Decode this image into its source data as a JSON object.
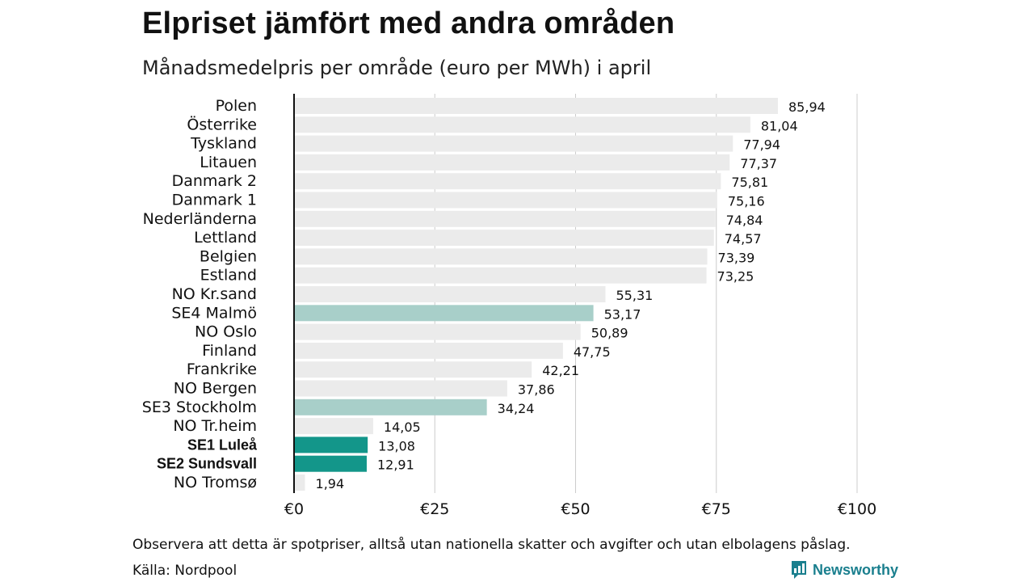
{
  "title": "Elpriset jämfört med andra områden",
  "subtitle": "Månadsmedelpris per område (euro per MWh) i april",
  "note": "Observera att detta är spotpriser, alltså utan nationella skatter och avgifter och utan elbolagens påslag.",
  "source": "Källa: Nordpool",
  "brand": {
    "name": "Newsworthy",
    "logo_icon": "newsworthy-chart-bubble-icon"
  },
  "colors": {
    "default_bar": "#ebebeb",
    "light_highlight": "#a8cfc9",
    "strong_highlight": "#13968a",
    "gridline": "#cccccc",
    "axis": "#111111",
    "brand": "#1a7f8e"
  },
  "chart_data": {
    "type": "bar",
    "orientation": "horizontal",
    "title": "Elpriset jämfört med andra områden",
    "subtitle": "Månadsmedelpris per område (euro per MWh) i april",
    "categories": [
      "Polen",
      "Österrike",
      "Tyskland",
      "Litauen",
      "Danmark  2",
      "Danmark  1",
      "Nederländerna",
      "Lettland",
      "Belgien",
      "Estland",
      "NO Kr.sand",
      "SE4  Malmö",
      "NO Oslo",
      "Finland",
      "Frankrike",
      "NO Bergen",
      "SE3  Stockholm",
      "NO Tr.heim",
      "SE1 Luleå",
      "SE2 Sundsvall",
      "NO Tromsø"
    ],
    "values": [
      85.94,
      81.04,
      77.94,
      77.37,
      75.81,
      75.16,
      74.84,
      74.57,
      73.39,
      73.25,
      55.31,
      53.17,
      50.89,
      47.75,
      42.21,
      37.86,
      34.24,
      14.05,
      13.08,
      12.91,
      1.94
    ],
    "value_labels": [
      "85,94",
      "81,04",
      "77,94",
      "77,37",
      "75,81",
      "75,16",
      "74,84",
      "74,57",
      "73,39",
      "73,25",
      "55,31",
      "53,17",
      "50,89",
      "47,75",
      "42,21",
      "37,86",
      "34,24",
      "14,05",
      "13,08",
      "12,91",
      "1,94"
    ],
    "highlight": [
      "none",
      "none",
      "none",
      "none",
      "none",
      "none",
      "none",
      "none",
      "none",
      "none",
      "none",
      "light",
      "none",
      "none",
      "none",
      "none",
      "light",
      "none",
      "strong",
      "strong",
      "none"
    ],
    "bold_labels": [
      "SE1 Luleå",
      "SE2 Sundsvall"
    ],
    "x_ticks": [
      0,
      25,
      50,
      75,
      100
    ],
    "x_tick_labels": [
      "€0",
      "€25",
      "€50",
      "€75",
      "€100"
    ],
    "xlim": [
      0,
      100
    ],
    "grid": true
  }
}
